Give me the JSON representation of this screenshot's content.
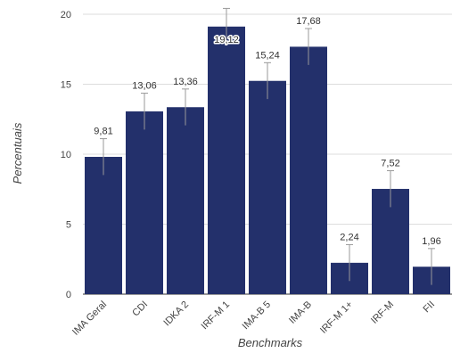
{
  "chart_data": {
    "type": "bar",
    "categories": [
      "IMA Geral",
      "CDI",
      "IDKA 2",
      "IRF-M 1",
      "IMA-B 5",
      "IMA-B",
      "IRF-M 1+",
      "IRF-M",
      "FII"
    ],
    "values": [
      9.81,
      13.06,
      13.36,
      19.12,
      15.24,
      17.68,
      2.24,
      7.52,
      1.96
    ],
    "value_labels": [
      "9,81",
      "13,06",
      "13,36",
      "19,12",
      "15,24",
      "17,68",
      "2,24",
      "7,52",
      "1,96"
    ],
    "xlabel": "Benchmarks",
    "ylabel": "Percentuais",
    "ylim": [
      0,
      20
    ],
    "yticks": [
      0,
      5,
      10,
      15,
      20
    ],
    "grid": true,
    "bar_color": "#23306b"
  }
}
